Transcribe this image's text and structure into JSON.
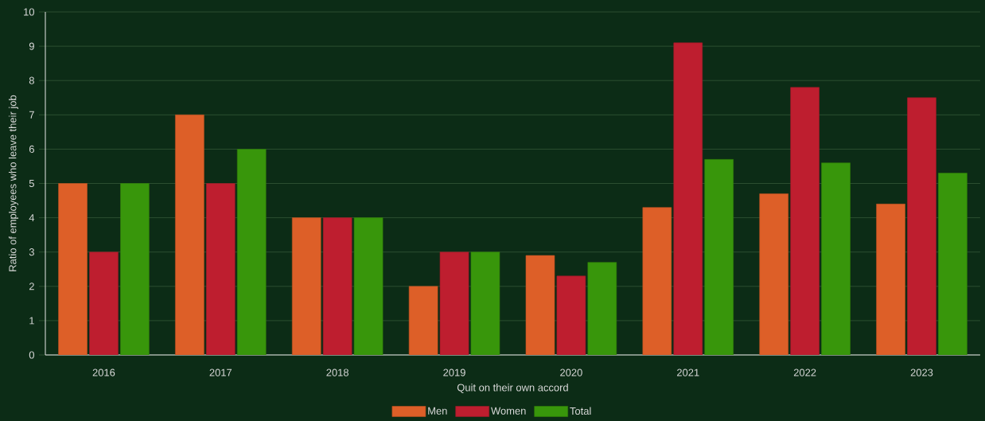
{
  "chart_data": {
    "type": "bar",
    "xlabel": "Quit on their own accord",
    "ylabel": "Ratio of employees who leave their job",
    "categories": [
      "2016",
      "2017",
      "2018",
      "2019",
      "2020",
      "2021",
      "2022",
      "2023"
    ],
    "series": [
      {
        "name": "Men",
        "color": "#dd5f28",
        "values": [
          5,
          7,
          4,
          2,
          2.9,
          4.3,
          4.7,
          4.4
        ]
      },
      {
        "name": "Women",
        "color": "#be1e2f",
        "values": [
          3,
          5,
          4,
          3,
          2.3,
          9.1,
          7.8,
          7.5
        ]
      },
      {
        "name": "Total",
        "color": "#38960b",
        "values": [
          5,
          6,
          4,
          3,
          2.7,
          5.7,
          5.6,
          5.3
        ]
      }
    ],
    "ylim": [
      0,
      10
    ],
    "yticks": [
      0,
      1,
      2,
      3,
      4,
      5,
      6,
      7,
      8,
      9,
      10
    ],
    "grid": "y",
    "legend": "bottom"
  }
}
